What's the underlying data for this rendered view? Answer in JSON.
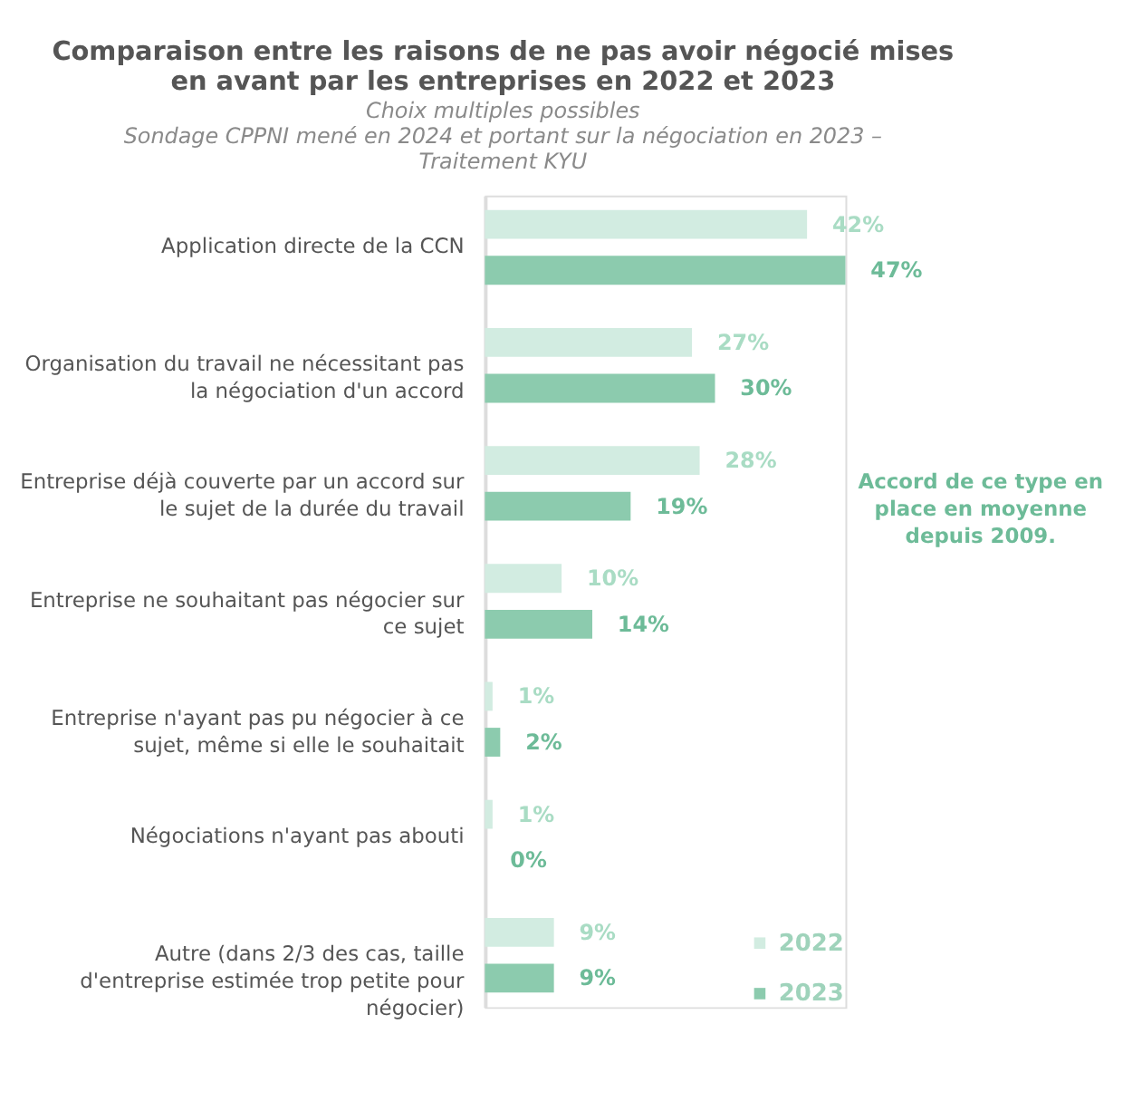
{
  "chart_data": {
    "type": "bar",
    "orientation": "horizontal",
    "title": "Comparaison entre les raisons de ne pas avoir négocié mises en avant par les entreprises en 2022 et 2023",
    "subtitle": "Choix multiples possibles",
    "annotations": [
      "Sondage CPPNI mené en 2024 et portant sur la négociation en 2023 – Traitement KYU",
      "Accord de ce type en place en moyenne depuis 2009."
    ],
    "categories": [
      "Application directe de la CCN",
      "Organisation du travail ne nécessitant pas la négociation d'un accord",
      "Entreprise déjà couverte par un accord sur le sujet de la durée du travail",
      "Entreprise ne souhaitant pas négocier sur ce sujet",
      "Entreprise n'ayant pas pu négocier à ce sujet, même si elle le souhaitait",
      "Négociations n'ayant pas abouti",
      "Autre (dans 2/3 des cas, taille d'entreprise estimée trop petite pour négocier)"
    ],
    "series": [
      {
        "name": "2022",
        "color": "#d2ece1",
        "values": [
          42,
          27,
          28,
          10,
          1,
          1,
          9
        ],
        "value_labels": [
          "42%",
          "27%",
          "28%",
          "10%",
          "1%",
          "1%",
          "9%"
        ]
      },
      {
        "name": "2023",
        "color": "#8ccbae",
        "values": [
          47,
          30,
          19,
          14,
          2,
          0,
          9
        ],
        "value_labels": [
          "47%",
          "30%",
          "19%",
          "14%",
          "2%",
          "0%",
          "9%"
        ]
      }
    ],
    "legend": "bottom right",
    "grid": false
  }
}
